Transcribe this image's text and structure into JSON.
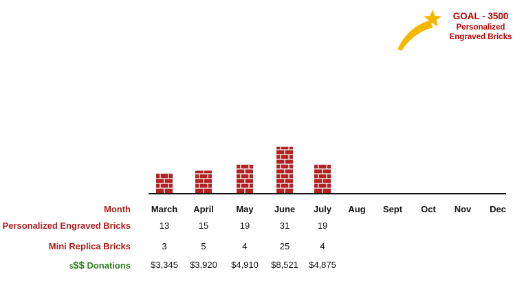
{
  "goal": {
    "title": "GOAL - 3500",
    "subtitle_line1": "Personalized",
    "subtitle_line2": "Engraved Bricks"
  },
  "colors": {
    "brick": "#b22222",
    "mortar": "#ffffff",
    "label_red": "#b01c1c",
    "donation_green": "#2e7d1e",
    "star": "#f5b800"
  },
  "icons": {
    "star": "shooting-star-icon"
  },
  "chart_data": {
    "type": "bar",
    "categories": [
      "March",
      "April",
      "May",
      "June",
      "July",
      "Aug",
      "Sept",
      "Oct",
      "Nov",
      "Dec"
    ],
    "series": [
      {
        "name": "Personalized Engraved Bricks",
        "values": [
          13,
          15,
          19,
          31,
          19,
          null,
          null,
          null,
          null,
          null
        ]
      }
    ],
    "grid": false
  },
  "table": {
    "rows": [
      {
        "label": "Month",
        "values": [
          "March",
          "April",
          "May",
          "June",
          "July",
          "Aug",
          "Sept",
          "Oct",
          "Nov",
          "Dec"
        ]
      },
      {
        "label": "Personalized Engraved Bricks",
        "values": [
          "13",
          "15",
          "19",
          "31",
          "19",
          "",
          "",
          "",
          "",
          ""
        ]
      },
      {
        "label": "Mini Replica Bricks",
        "values": [
          "3",
          "5",
          "4",
          "25",
          "4",
          "",
          "",
          "",
          "",
          ""
        ]
      },
      {
        "label_small": "$",
        "label_big": "$$",
        "label": "Donations",
        "values": [
          "$3,345",
          "$3,920",
          "$4,910",
          "$8,521",
          "$4,875",
          "",
          "",
          "",
          "",
          ""
        ]
      }
    ]
  }
}
